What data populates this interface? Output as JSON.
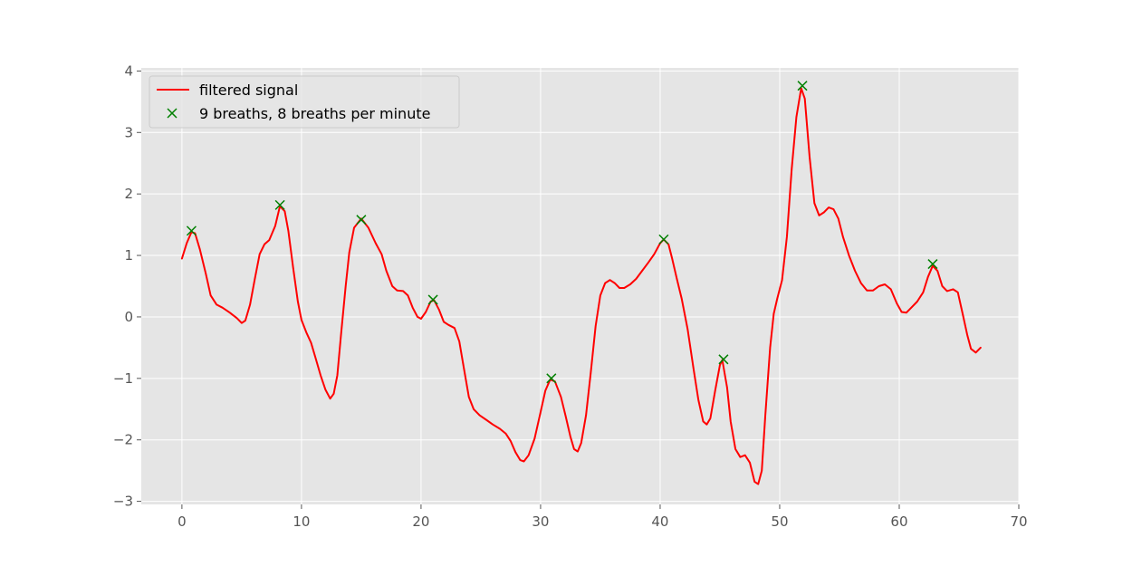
{
  "chart_data": {
    "type": "line",
    "style": "ggplot",
    "grid": true,
    "legend_position": "top-left",
    "xlim": [
      -3.4,
      70
    ],
    "ylim": [
      -3.05,
      4.05
    ],
    "xticks": [
      0,
      10,
      20,
      30,
      40,
      50,
      60,
      70
    ],
    "yticks": [
      -3,
      -2,
      -1,
      0,
      1,
      2,
      3,
      4
    ],
    "xtick_labels": [
      "0",
      "10",
      "20",
      "30",
      "40",
      "50",
      "60",
      "70"
    ],
    "ytick_labels": [
      "−3",
      "−2",
      "−1",
      "0",
      "1",
      "2",
      "3",
      "4"
    ],
    "series": [
      {
        "name": "filtered signal",
        "kind": "line",
        "color": "#ff0000",
        "points": [
          [
            0,
            0.95
          ],
          [
            0.4,
            1.2
          ],
          [
            0.8,
            1.38
          ],
          [
            1.1,
            1.36
          ],
          [
            1.5,
            1.1
          ],
          [
            2,
            0.7
          ],
          [
            2.4,
            0.35
          ],
          [
            2.9,
            0.2
          ],
          [
            3.4,
            0.15
          ],
          [
            4,
            0.07
          ],
          [
            4.6,
            -0.02
          ],
          [
            5,
            -0.1
          ],
          [
            5.3,
            -0.06
          ],
          [
            5.7,
            0.2
          ],
          [
            6.1,
            0.62
          ],
          [
            6.5,
            1.02
          ],
          [
            6.9,
            1.18
          ],
          [
            7.3,
            1.25
          ],
          [
            7.8,
            1.48
          ],
          [
            8.2,
            1.8
          ],
          [
            8.6,
            1.72
          ],
          [
            8.9,
            1.4
          ],
          [
            9.3,
            0.8
          ],
          [
            9.7,
            0.25
          ],
          [
            10,
            -0.05
          ],
          [
            10.4,
            -0.25
          ],
          [
            10.8,
            -0.42
          ],
          [
            11.2,
            -0.68
          ],
          [
            11.6,
            -0.95
          ],
          [
            12,
            -1.18
          ],
          [
            12.4,
            -1.33
          ],
          [
            12.7,
            -1.25
          ],
          [
            13,
            -0.95
          ],
          [
            13.3,
            -0.3
          ],
          [
            13.7,
            0.5
          ],
          [
            14,
            1.05
          ],
          [
            14.4,
            1.45
          ],
          [
            15,
            1.6
          ],
          [
            15.6,
            1.45
          ],
          [
            16.2,
            1.2
          ],
          [
            16.7,
            1.02
          ],
          [
            17.1,
            0.75
          ],
          [
            17.6,
            0.5
          ],
          [
            18,
            0.43
          ],
          [
            18.5,
            0.42
          ],
          [
            18.9,
            0.35
          ],
          [
            19.3,
            0.15
          ],
          [
            19.7,
            0.0
          ],
          [
            20,
            -0.03
          ],
          [
            20.4,
            0.08
          ],
          [
            20.8,
            0.25
          ],
          [
            21.1,
            0.27
          ],
          [
            21.5,
            0.12
          ],
          [
            21.9,
            -0.08
          ],
          [
            22.3,
            -0.13
          ],
          [
            22.8,
            -0.18
          ],
          [
            23.2,
            -0.4
          ],
          [
            23.6,
            -0.85
          ],
          [
            24,
            -1.3
          ],
          [
            24.4,
            -1.5
          ],
          [
            24.9,
            -1.6
          ],
          [
            25.5,
            -1.68
          ],
          [
            26,
            -1.75
          ],
          [
            26.6,
            -1.82
          ],
          [
            27.1,
            -1.9
          ],
          [
            27.5,
            -2.02
          ],
          [
            27.9,
            -2.2
          ],
          [
            28.3,
            -2.33
          ],
          [
            28.6,
            -2.35
          ],
          [
            29,
            -2.25
          ],
          [
            29.5,
            -1.98
          ],
          [
            30,
            -1.55
          ],
          [
            30.4,
            -1.2
          ],
          [
            30.8,
            -1.02
          ],
          [
            31.2,
            -1.05
          ],
          [
            31.7,
            -1.3
          ],
          [
            32.1,
            -1.62
          ],
          [
            32.5,
            -1.95
          ],
          [
            32.8,
            -2.15
          ],
          [
            33.1,
            -2.19
          ],
          [
            33.4,
            -2.05
          ],
          [
            33.8,
            -1.6
          ],
          [
            34.2,
            -0.9
          ],
          [
            34.6,
            -0.15
          ],
          [
            35,
            0.35
          ],
          [
            35.4,
            0.55
          ],
          [
            35.8,
            0.6
          ],
          [
            36.2,
            0.55
          ],
          [
            36.6,
            0.47
          ],
          [
            37,
            0.47
          ],
          [
            37.5,
            0.53
          ],
          [
            38,
            0.62
          ],
          [
            38.5,
            0.75
          ],
          [
            39,
            0.88
          ],
          [
            39.5,
            1.02
          ],
          [
            40,
            1.2
          ],
          [
            40.3,
            1.26
          ],
          [
            40.7,
            1.18
          ],
          [
            41,
            0.95
          ],
          [
            41.4,
            0.62
          ],
          [
            41.8,
            0.3
          ],
          [
            42.3,
            -0.2
          ],
          [
            42.8,
            -0.85
          ],
          [
            43.2,
            -1.35
          ],
          [
            43.6,
            -1.7
          ],
          [
            43.9,
            -1.75
          ],
          [
            44.2,
            -1.65
          ],
          [
            44.6,
            -1.2
          ],
          [
            45,
            -0.78
          ],
          [
            45.2,
            -0.7
          ],
          [
            45.6,
            -1.15
          ],
          [
            45.9,
            -1.7
          ],
          [
            46.3,
            -2.15
          ],
          [
            46.7,
            -2.28
          ],
          [
            47.1,
            -2.25
          ],
          [
            47.5,
            -2.37
          ],
          [
            47.9,
            -2.68
          ],
          [
            48.2,
            -2.72
          ],
          [
            48.5,
            -2.5
          ],
          [
            48.8,
            -1.6
          ],
          [
            49.2,
            -0.5
          ],
          [
            49.5,
            0.05
          ],
          [
            49.8,
            0.3
          ],
          [
            50.2,
            0.6
          ],
          [
            50.6,
            1.3
          ],
          [
            51,
            2.4
          ],
          [
            51.4,
            3.25
          ],
          [
            51.8,
            3.72
          ],
          [
            52.1,
            3.55
          ],
          [
            52.5,
            2.6
          ],
          [
            52.9,
            1.85
          ],
          [
            53.3,
            1.65
          ],
          [
            53.7,
            1.7
          ],
          [
            54.1,
            1.78
          ],
          [
            54.5,
            1.75
          ],
          [
            54.9,
            1.6
          ],
          [
            55.3,
            1.3
          ],
          [
            55.8,
            1.0
          ],
          [
            56.3,
            0.75
          ],
          [
            56.8,
            0.55
          ],
          [
            57.3,
            0.43
          ],
          [
            57.8,
            0.43
          ],
          [
            58.3,
            0.5
          ],
          [
            58.8,
            0.53
          ],
          [
            59.3,
            0.45
          ],
          [
            59.8,
            0.22
          ],
          [
            60.2,
            0.08
          ],
          [
            60.6,
            0.07
          ],
          [
            61,
            0.15
          ],
          [
            61.5,
            0.25
          ],
          [
            62,
            0.4
          ],
          [
            62.4,
            0.65
          ],
          [
            62.8,
            0.83
          ],
          [
            63.2,
            0.75
          ],
          [
            63.6,
            0.5
          ],
          [
            64,
            0.42
          ],
          [
            64.5,
            0.45
          ],
          [
            64.9,
            0.4
          ],
          [
            65.3,
            0.05
          ],
          [
            65.7,
            -0.3
          ],
          [
            66,
            -0.52
          ],
          [
            66.4,
            -0.58
          ],
          [
            66.8,
            -0.5
          ]
        ]
      },
      {
        "name": "9 breaths, 8 breaths per minute",
        "kind": "markers",
        "marker": "x",
        "color": "#008000",
        "points": [
          [
            0.8,
            1.4
          ],
          [
            8.2,
            1.82
          ],
          [
            15,
            1.58
          ],
          [
            21,
            0.28
          ],
          [
            30.9,
            -1.0
          ],
          [
            40.3,
            1.26
          ],
          [
            45.3,
            -0.69
          ],
          [
            51.9,
            3.76
          ],
          [
            62.8,
            0.86
          ]
        ]
      }
    ]
  }
}
